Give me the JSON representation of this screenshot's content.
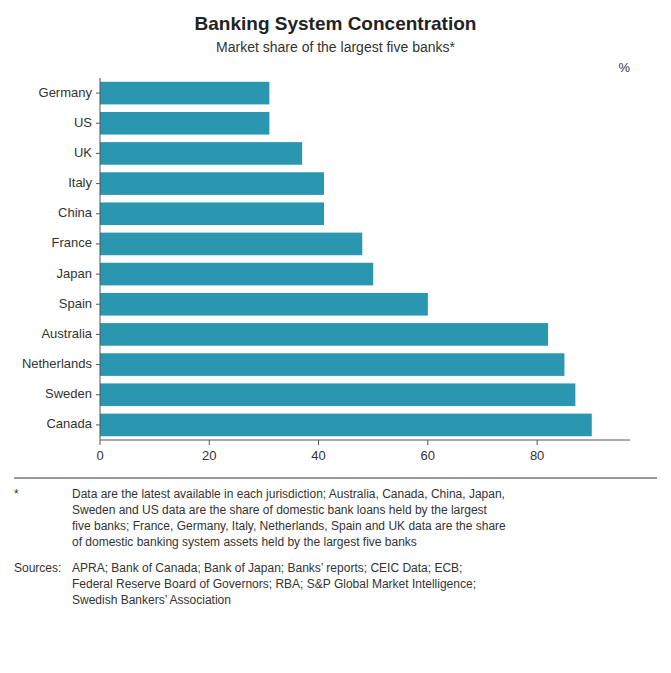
{
  "chart_data": {
    "type": "bar",
    "orientation": "horizontal",
    "title": "Banking System Concentration",
    "subtitle": "Market share of the largest five banks*",
    "categories": [
      "Germany",
      "US",
      "UK",
      "Italy",
      "China",
      "France",
      "Japan",
      "Spain",
      "Australia",
      "Netherlands",
      "Sweden",
      "Canada"
    ],
    "values": [
      31,
      31,
      37,
      41,
      41,
      48,
      50,
      60,
      82,
      85,
      87,
      90
    ],
    "color": "#2a96b0",
    "xlim": [
      0,
      97
    ],
    "xticks": [
      0,
      20,
      40,
      60,
      80
    ],
    "xlabel": "%",
    "grid": false,
    "notes": [
      {
        "label": "*",
        "text": "Data are the latest available in each jurisdiction; Australia, Canada, China, Japan,\nSweden and US data are the share of domestic bank loans held by the largest\nfive banks; France, Germany, Italy, Netherlands, Spain and UK data are the share\nof domestic banking system assets held by the largest five banks"
      },
      {
        "label": "Sources:",
        "text": "APRA; Bank of Canada; Bank of Japan; Banks’ reports; CEIC Data; ECB;\nFederal Reserve Board of Governors; RBA; S&P Global Market Intelligence;\nSwedish Bankers’ Association"
      }
    ]
  }
}
